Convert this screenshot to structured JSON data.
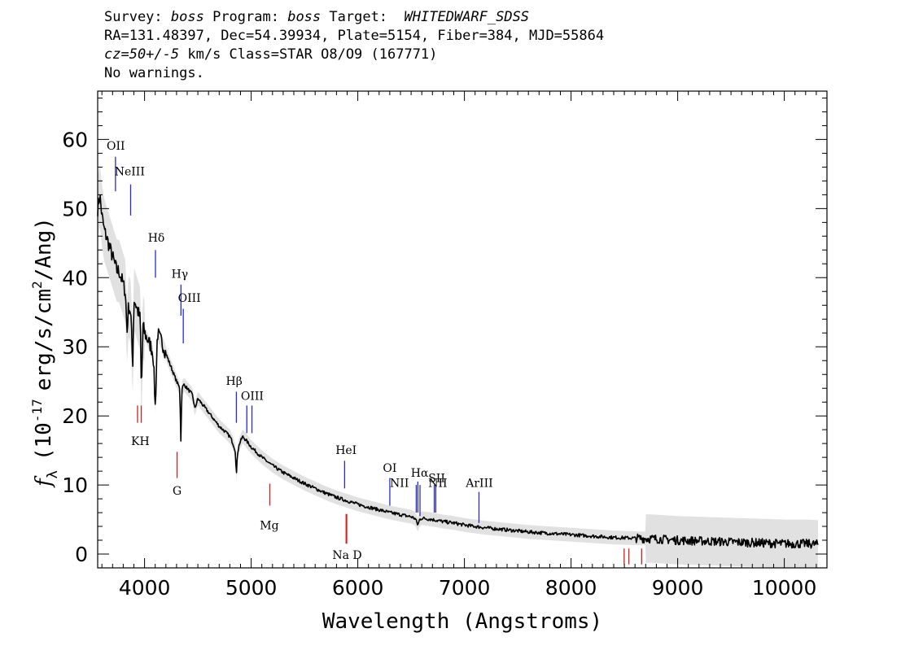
{
  "header": {
    "survey_label": "Survey: ",
    "survey_value": "boss",
    "program_label": " Program: ",
    "program_value": "boss",
    "target_label": " Target:  ",
    "target_value": "WHITEDWARF_SDSS",
    "line2": "RA=131.48397, Dec=54.39934, Plate=5154, Fiber=384, MJD=55864",
    "cz_value": "cz=50+/-5",
    "cz_rest": " km/s Class=STAR O8/O9 (167771)",
    "line4": "No warnings."
  },
  "colors": {
    "emission": "#2a2ad0",
    "absorption": "#d02020",
    "spectrum": "#000000",
    "noise": "#bdbdbd"
  },
  "chart_data": {
    "type": "line",
    "xlabel": "Wavelength (Angstroms)",
    "ylabel_main": "f",
    "ylabel_sub": "λ",
    "ylabel_pre": "(10",
    "ylabel_exp": "-17",
    "ylabel_mid": "erg/s/cm",
    "ylabel_exp2": "2",
    "ylabel_post": "/Ang)",
    "xlim": [
      3560,
      10400
    ],
    "ylim": [
      -2,
      67
    ],
    "x_ticks": [
      4000,
      5000,
      6000,
      7000,
      8000,
      9000,
      10000
    ],
    "x_tick_labels": [
      "4000",
      "5000",
      "6000",
      "7000",
      "8000",
      "9000",
      "10000"
    ],
    "y_ticks": [
      0,
      10,
      20,
      30,
      40,
      50,
      60
    ],
    "y_tick_labels": [
      "0",
      "10",
      "20",
      "30",
      "40",
      "50",
      "60"
    ],
    "spectrum": {
      "x": [
        3560,
        3580,
        3600,
        3620,
        3640,
        3660,
        3680,
        3700,
        3720,
        3740,
        3760,
        3780,
        3800,
        3820,
        3835,
        3850,
        3870,
        3889,
        3900,
        3920,
        3940,
        3960,
        3970,
        3985,
        4000,
        4030,
        4060,
        4080,
        4101,
        4120,
        4150,
        4180,
        4200,
        4250,
        4300,
        4330,
        4340,
        4350,
        4370,
        4400,
        4450,
        4471,
        4500,
        4550,
        4600,
        4650,
        4700,
        4750,
        4800,
        4830,
        4850,
        4861,
        4870,
        4890,
        4920,
        4950,
        5000,
        5100,
        5200,
        5300,
        5400,
        5500,
        5600,
        5700,
        5800,
        5900,
        6000,
        6100,
        6200,
        6300,
        6400,
        6500,
        6540,
        6563,
        6580,
        6600,
        6700,
        6800,
        6900,
        7000,
        7200,
        7400,
        7600,
        7800,
        8000,
        8200,
        8400,
        8600,
        8800,
        9000,
        9200,
        9400,
        9600,
        9800,
        10000,
        10200,
        10320
      ],
      "y": [
        50,
        52,
        49,
        47,
        46,
        45,
        44,
        43,
        42,
        41,
        41,
        40,
        39,
        38,
        32,
        36,
        35,
        27,
        37,
        36,
        35,
        34,
        23,
        33,
        32,
        31,
        30,
        29,
        21,
        32,
        31,
        30,
        29,
        27,
        25,
        24,
        16.5,
        24,
        24.5,
        24,
        23,
        21,
        22.5,
        21.5,
        20.5,
        19.5,
        18.5,
        17.8,
        17,
        16,
        15,
        11.2,
        14.5,
        16,
        17,
        16.5,
        15.5,
        14,
        12.8,
        11.8,
        11,
        10.2,
        9.5,
        8.8,
        8.2,
        7.7,
        7.2,
        6.8,
        6.4,
        6,
        5.7,
        5.4,
        5.1,
        4.2,
        5,
        5.2,
        5,
        4.7,
        4.5,
        4.2,
        3.8,
        3.5,
        3.2,
        3,
        2.8,
        2.6,
        2.4,
        2.3,
        2.2,
        2,
        1.9,
        1.8,
        1.7,
        1.6,
        1.5,
        1.5,
        1.4
      ]
    },
    "emission_lines": [
      {
        "name": "OII",
        "x": 3727
      },
      {
        "name": "NeIII",
        "x": 3869
      },
      {
        "name": "Hδ",
        "x": 4102
      },
      {
        "name": "Hγ",
        "x": 4341
      },
      {
        "name": "OIII",
        "x": 4363
      },
      {
        "name": "Hβ",
        "x": 4861
      },
      {
        "name": "OIII",
        "x": 4959
      },
      {
        "name": "OIII",
        "x": 5007
      },
      {
        "name": "HeI",
        "x": 5876
      },
      {
        "name": "OI",
        "x": 6300
      },
      {
        "name": "NII",
        "x": 6548
      },
      {
        "name": "Hα",
        "x": 6563
      },
      {
        "name": "NII",
        "x": 6583
      },
      {
        "name": "SII",
        "x": 6717
      },
      {
        "name": "SII",
        "x": 6731
      },
      {
        "name": "ArIII",
        "x": 7136
      }
    ],
    "absorption_lines": [
      {
        "name": "K",
        "x": 3934
      },
      {
        "name": "H",
        "x": 3969
      },
      {
        "name": "G",
        "x": 4305
      },
      {
        "name": "Mg",
        "x": 5175
      },
      {
        "name": "Na",
        "x": 5890
      },
      {
        "name": "D",
        "x": 5896
      },
      {
        "name": "",
        "x": 8498
      },
      {
        "name": "",
        "x": 8542
      },
      {
        "name": "",
        "x": 8662
      }
    ],
    "labels": {
      "OII": "OII",
      "NeIII": "NeIII",
      "Hdelta": "Hδ",
      "Hgamma": "Hγ",
      "OIII_a": "OIII",
      "Hbeta": "Hβ",
      "OIII_b": "OIII",
      "HeI": "HeI",
      "OI": "OI",
      "NII_a": "NII",
      "Halpha": "Hα",
      "SII": "SII",
      "NII_b": "NII",
      "ArIII": "ArIII",
      "KH": "KH",
      "G": "G",
      "Mg": "Mg",
      "NaD": "Na  D"
    }
  }
}
